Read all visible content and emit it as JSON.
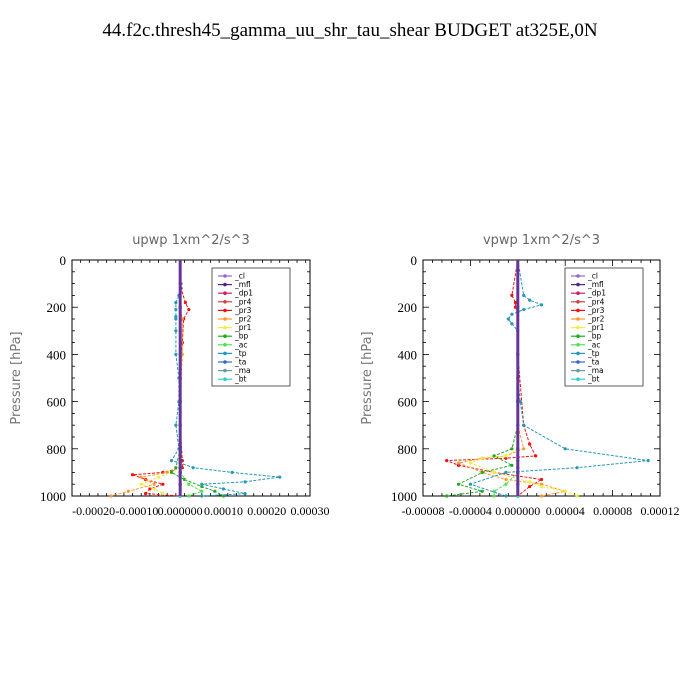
{
  "title": "44.f2c.thresh45_gamma_uu_shr_tau_shear  BUDGET at325E,0N",
  "chart_data": [
    {
      "type": "line",
      "title": "upwp   1xm^2/s^3",
      "ylabel": "Pressure [hPa]",
      "ylim": [
        0,
        1000
      ],
      "yticks": [
        0,
        200,
        400,
        600,
        800,
        1000
      ],
      "xlim": [
        -0.00025,
        0.0003
      ],
      "xticks": [
        -0.0002,
        -0.0001,
        0.0,
        0.0001,
        0.0002,
        0.0003
      ],
      "xticklabels": [
        "-0.00020",
        "-0.00010",
        "0.000000",
        "0.00010",
        "0.00020",
        "0.00030"
      ],
      "legend_position": "top-right",
      "series": [
        {
          "name": "_cl",
          "color": "#9966cc",
          "x": [
            0,
            0,
            0,
            0,
            0,
            0,
            0
          ],
          "y": [
            0,
            200,
            400,
            600,
            800,
            900,
            1000
          ]
        },
        {
          "name": "_mfl",
          "color": "#552288",
          "x": [
            0,
            0,
            0,
            0,
            0,
            0,
            0
          ],
          "y": [
            0,
            200,
            400,
            600,
            800,
            900,
            1000
          ]
        },
        {
          "name": "_dp1",
          "color": "#cc2266",
          "x": [
            0,
            0,
            0,
            0,
            0,
            0,
            0
          ],
          "y": [
            0,
            200,
            400,
            600,
            800,
            900,
            1000
          ]
        },
        {
          "name": "_pr4",
          "color": "#cc4444",
          "x": [
            0,
            0,
            0,
            0,
            0,
            0,
            0,
            0,
            0,
            0,
            0,
            0,
            0
          ],
          "y": [
            0,
            100,
            200,
            300,
            400,
            500,
            600,
            700,
            800,
            850,
            900,
            950,
            1000
          ]
        },
        {
          "name": "_pr3",
          "color": "#ee1111",
          "x": [
            0,
            2e-06,
            1.2e-05,
            2e-05,
            8e-06,
            5e-06,
            0,
            0,
            5e-06,
            5e-06,
            -4e-05,
            -0.00011,
            -8e-05,
            -4e-05,
            -7e-05,
            -8e-05,
            0
          ],
          "y": [
            0,
            120,
            180,
            210,
            250,
            350,
            500,
            700,
            850,
            880,
            900,
            910,
            930,
            950,
            970,
            990,
            1000
          ]
        },
        {
          "name": "_pr2",
          "color": "#ff9933",
          "x": [
            0,
            0,
            5e-06,
            5e-06,
            0,
            0,
            0,
            -3e-05,
            -9e-05,
            -6e-05,
            -0.00012,
            -0.00016
          ],
          "y": [
            0,
            200,
            250,
            400,
            600,
            800,
            880,
            900,
            920,
            950,
            980,
            1000
          ]
        },
        {
          "name": "_pr1",
          "color": "#eeee44",
          "x": [
            0,
            0,
            0,
            0,
            -2e-05,
            -5e-05,
            -9e-05,
            -6e-05,
            -4e-05
          ],
          "y": [
            0,
            300,
            600,
            880,
            900,
            920,
            950,
            970,
            990
          ]
        },
        {
          "name": "_bp",
          "color": "#22aa22",
          "x": [
            0,
            0,
            0,
            -1e-05,
            -2e-05,
            1e-05,
            5e-05,
            8e-05,
            0.0001
          ],
          "y": [
            0,
            400,
            800,
            880,
            900,
            930,
            960,
            980,
            1000
          ]
        },
        {
          "name": "_ac",
          "color": "#55dd55",
          "x": [
            0,
            0,
            0,
            0,
            2e-05,
            5e-05,
            2e-05
          ],
          "y": [
            0,
            400,
            800,
            900,
            950,
            980,
            1000
          ]
        },
        {
          "name": "_tp",
          "color": "#2299bb",
          "x": [
            0,
            2e-06,
            -3e-06,
            -1e-05,
            -1e-05,
            -1e-05,
            -1e-05,
            -1e-05,
            -1e-05,
            -3e-06,
            -3e-06,
            -1e-05,
            -3e-06,
            -2e-05,
            0,
            3e-05,
            0.00012,
            0.00023,
            0.00015,
            5e-05,
            0.0001,
            0.00015,
            5e-05
          ],
          "y": [
            0,
            100,
            150,
            180,
            210,
            240,
            250,
            300,
            400,
            500,
            600,
            700,
            800,
            850,
            860,
            880,
            900,
            920,
            940,
            950,
            970,
            990,
            1000
          ]
        },
        {
          "name": "_ta",
          "color": "#3366cc",
          "x": [
            0,
            0,
            0,
            0,
            0,
            0,
            0,
            0,
            0
          ],
          "y": [
            0,
            200,
            400,
            600,
            800,
            880,
            900,
            950,
            1000
          ]
        },
        {
          "name": "_ma",
          "color": "#6699aa",
          "x": [
            0,
            0,
            0,
            0,
            0,
            0
          ],
          "y": [
            0,
            200,
            400,
            600,
            800,
            1000
          ]
        },
        {
          "name": "_bt",
          "color": "#33cccc",
          "x": [
            0,
            0,
            0,
            0,
            0,
            0
          ],
          "y": [
            0,
            200,
            400,
            600,
            800,
            1000
          ]
        }
      ]
    },
    {
      "type": "line",
      "title": "vpwp   1xm^2/s^3",
      "ylabel": "Pressure [hPa]",
      "ylim": [
        0,
        1000
      ],
      "yticks": [
        0,
        200,
        400,
        600,
        800,
        1000
      ],
      "xlim": [
        -8e-05,
        0.00012
      ],
      "xticks": [
        -8e-05,
        -4e-05,
        0.0,
        4e-05,
        8e-05,
        0.00012
      ],
      "xticklabels": [
        "-0.00008",
        "-0.00004",
        "0.000000",
        "0.00004",
        "0.00008",
        "0.00012"
      ],
      "legend_position": "top-right",
      "series": [
        {
          "name": "_cl",
          "color": "#9966cc",
          "x": [
            0,
            0,
            0,
            0,
            0,
            0,
            0
          ],
          "y": [
            0,
            200,
            400,
            600,
            800,
            900,
            1000
          ]
        },
        {
          "name": "_mfl",
          "color": "#552288",
          "x": [
            0,
            0,
            0,
            0,
            0,
            0,
            0
          ],
          "y": [
            0,
            200,
            400,
            600,
            800,
            900,
            1000
          ]
        },
        {
          "name": "_dp1",
          "color": "#cc2266",
          "x": [
            0,
            0,
            0,
            0,
            0,
            0,
            0
          ],
          "y": [
            0,
            200,
            400,
            600,
            800,
            900,
            1000
          ]
        },
        {
          "name": "_pr4",
          "color": "#cc4444",
          "x": [
            0,
            0,
            0,
            0,
            0,
            0,
            0,
            0,
            0
          ],
          "y": [
            0,
            200,
            400,
            600,
            800,
            850,
            900,
            950,
            1000
          ]
        },
        {
          "name": "_pr3",
          "color": "#ee1111",
          "x": [
            0,
            -5e-06,
            -2e-06,
            -2e-06,
            0,
            0,
            5e-06,
            1e-05,
            1.5e-05,
            -1e-05,
            -6e-05,
            -5e-05,
            -2e-05,
            2e-05,
            1e-05,
            0
          ],
          "y": [
            0,
            150,
            180,
            200,
            220,
            400,
            700,
            780,
            830,
            840,
            850,
            870,
            900,
            930,
            960,
            1000
          ]
        },
        {
          "name": "_pr2",
          "color": "#ff9933",
          "x": [
            0,
            0,
            0,
            0,
            5e-06,
            -1e-05,
            -3e-05,
            -5e-05,
            -3e-05,
            -1e-05,
            2e-05,
            4e-05,
            2e-05
          ],
          "y": [
            0,
            200,
            500,
            700,
            800,
            830,
            840,
            860,
            900,
            930,
            950,
            980,
            1000
          ]
        },
        {
          "name": "_pr1",
          "color": "#eeee44",
          "x": [
            0,
            0,
            0,
            0,
            -1e-05,
            -3e-05,
            -4e-05,
            -2e-05,
            1e-05,
            2e-05,
            4e-05,
            5e-05
          ],
          "y": [
            0,
            200,
            500,
            800,
            830,
            840,
            860,
            900,
            940,
            960,
            980,
            1000
          ]
        },
        {
          "name": "_bp",
          "color": "#22aa22",
          "x": [
            0,
            0,
            0,
            -5e-06,
            -2e-05,
            -5e-06,
            -3e-05,
            -5e-05,
            -3e-05,
            -6e-05
          ],
          "y": [
            0,
            400,
            700,
            800,
            830,
            870,
            900,
            950,
            980,
            1000
          ]
        },
        {
          "name": "_ac",
          "color": "#55dd55",
          "x": [
            0,
            0,
            0,
            0,
            -1e-05,
            -2e-05,
            -2e-05
          ],
          "y": [
            0,
            400,
            800,
            900,
            950,
            980,
            1000
          ]
        },
        {
          "name": "_tp",
          "color": "#2299bb",
          "x": [
            0,
            5e-06,
            1e-05,
            2e-05,
            5e-06,
            -5e-06,
            -8e-06,
            -5e-06,
            0,
            0,
            0,
            2e-06,
            5e-06,
            4e-05,
            0.00011,
            5e-05,
            -1e-05,
            -4e-05,
            -1e-05
          ],
          "y": [
            0,
            150,
            170,
            190,
            210,
            230,
            250,
            270,
            300,
            400,
            500,
            600,
            700,
            800,
            850,
            880,
            900,
            950,
            1000
          ]
        },
        {
          "name": "_ta",
          "color": "#3366cc",
          "x": [
            0,
            0,
            0,
            0,
            0,
            0,
            0,
            0,
            0
          ],
          "y": [
            0,
            200,
            400,
            600,
            800,
            880,
            900,
            950,
            1000
          ]
        },
        {
          "name": "_ma",
          "color": "#6699aa",
          "x": [
            0,
            0,
            0,
            0,
            0,
            0
          ],
          "y": [
            0,
            200,
            400,
            600,
            800,
            1000
          ]
        },
        {
          "name": "_bt",
          "color": "#33cccc",
          "x": [
            0,
            0,
            0,
            0,
            0,
            0
          ],
          "y": [
            0,
            200,
            400,
            600,
            800,
            1000
          ]
        }
      ]
    }
  ]
}
